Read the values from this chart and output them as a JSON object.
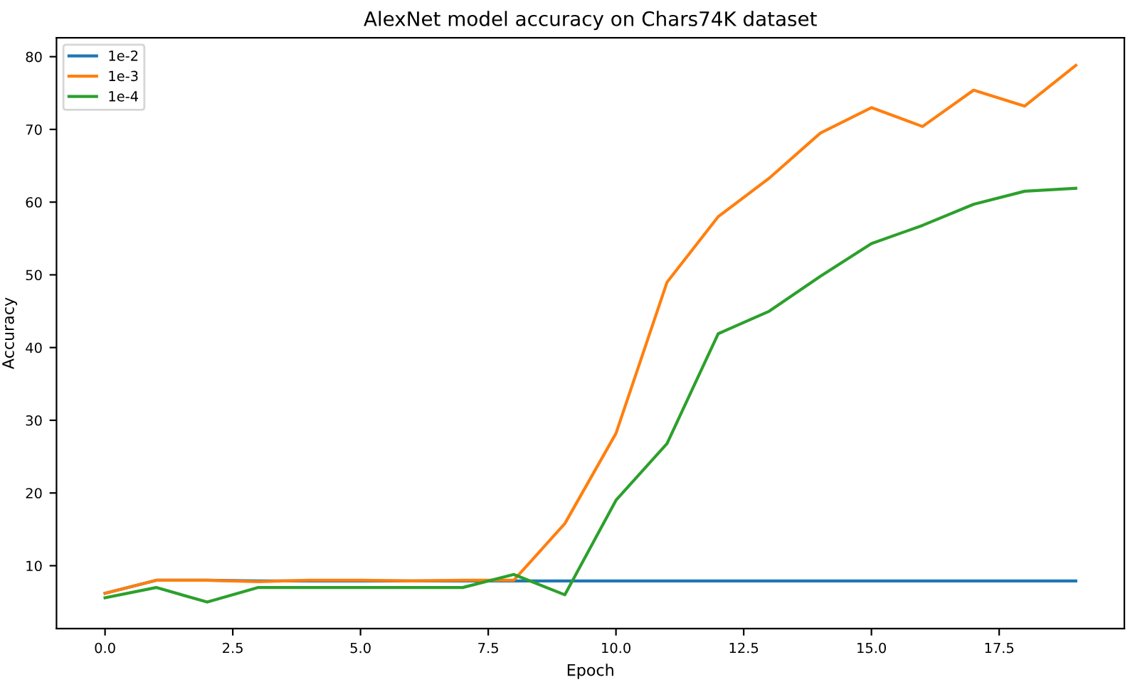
{
  "chart_data": {
    "type": "line",
    "title": "AlexNet model accuracy on Chars74K dataset",
    "xlabel": "Epoch",
    "ylabel": "Accuracy",
    "x": [
      0,
      1,
      2,
      3,
      4,
      5,
      6,
      7,
      8,
      9,
      10,
      11,
      12,
      13,
      14,
      15,
      16,
      17,
      18,
      19
    ],
    "series": [
      {
        "name": "1e-2",
        "color": "#1f77b4",
        "values": [
          6.2,
          8.0,
          8.0,
          7.9,
          7.9,
          7.9,
          7.9,
          7.9,
          7.9,
          7.9,
          7.9,
          7.9,
          7.9,
          7.9,
          7.9,
          7.9,
          7.9,
          7.9,
          7.9,
          7.9
        ]
      },
      {
        "name": "1e-3",
        "color": "#ff7f0e",
        "values": [
          6.2,
          8.0,
          8.0,
          7.8,
          8.0,
          8.0,
          7.9,
          8.0,
          8.0,
          15.8,
          28.2,
          49.0,
          58.0,
          63.3,
          69.5,
          73.0,
          70.4,
          75.4,
          73.2,
          78.8
        ]
      },
      {
        "name": "1e-4",
        "color": "#2ca02c",
        "values": [
          5.6,
          7.0,
          5.0,
          7.0,
          7.0,
          7.0,
          7.0,
          7.0,
          8.8,
          6.0,
          19.0,
          26.8,
          41.9,
          45.0,
          49.8,
          54.3,
          56.8,
          59.7,
          61.5,
          61.9
        ]
      }
    ],
    "xlim": [
      -0.95,
      19.95
    ],
    "ylim": [
      1.35,
      82.6
    ],
    "xticks": [
      {
        "value": 0,
        "label": "0.0"
      },
      2.5,
      {
        "value": 5,
        "label": "5.0"
      },
      7.5,
      {
        "value": 10,
        "label": "10.0"
      },
      12.5,
      {
        "value": 15,
        "label": "15.0"
      },
      17.5
    ],
    "yticks": [
      10,
      20,
      30,
      40,
      50,
      60,
      70,
      80
    ],
    "legend": "top left",
    "grid": false
  }
}
